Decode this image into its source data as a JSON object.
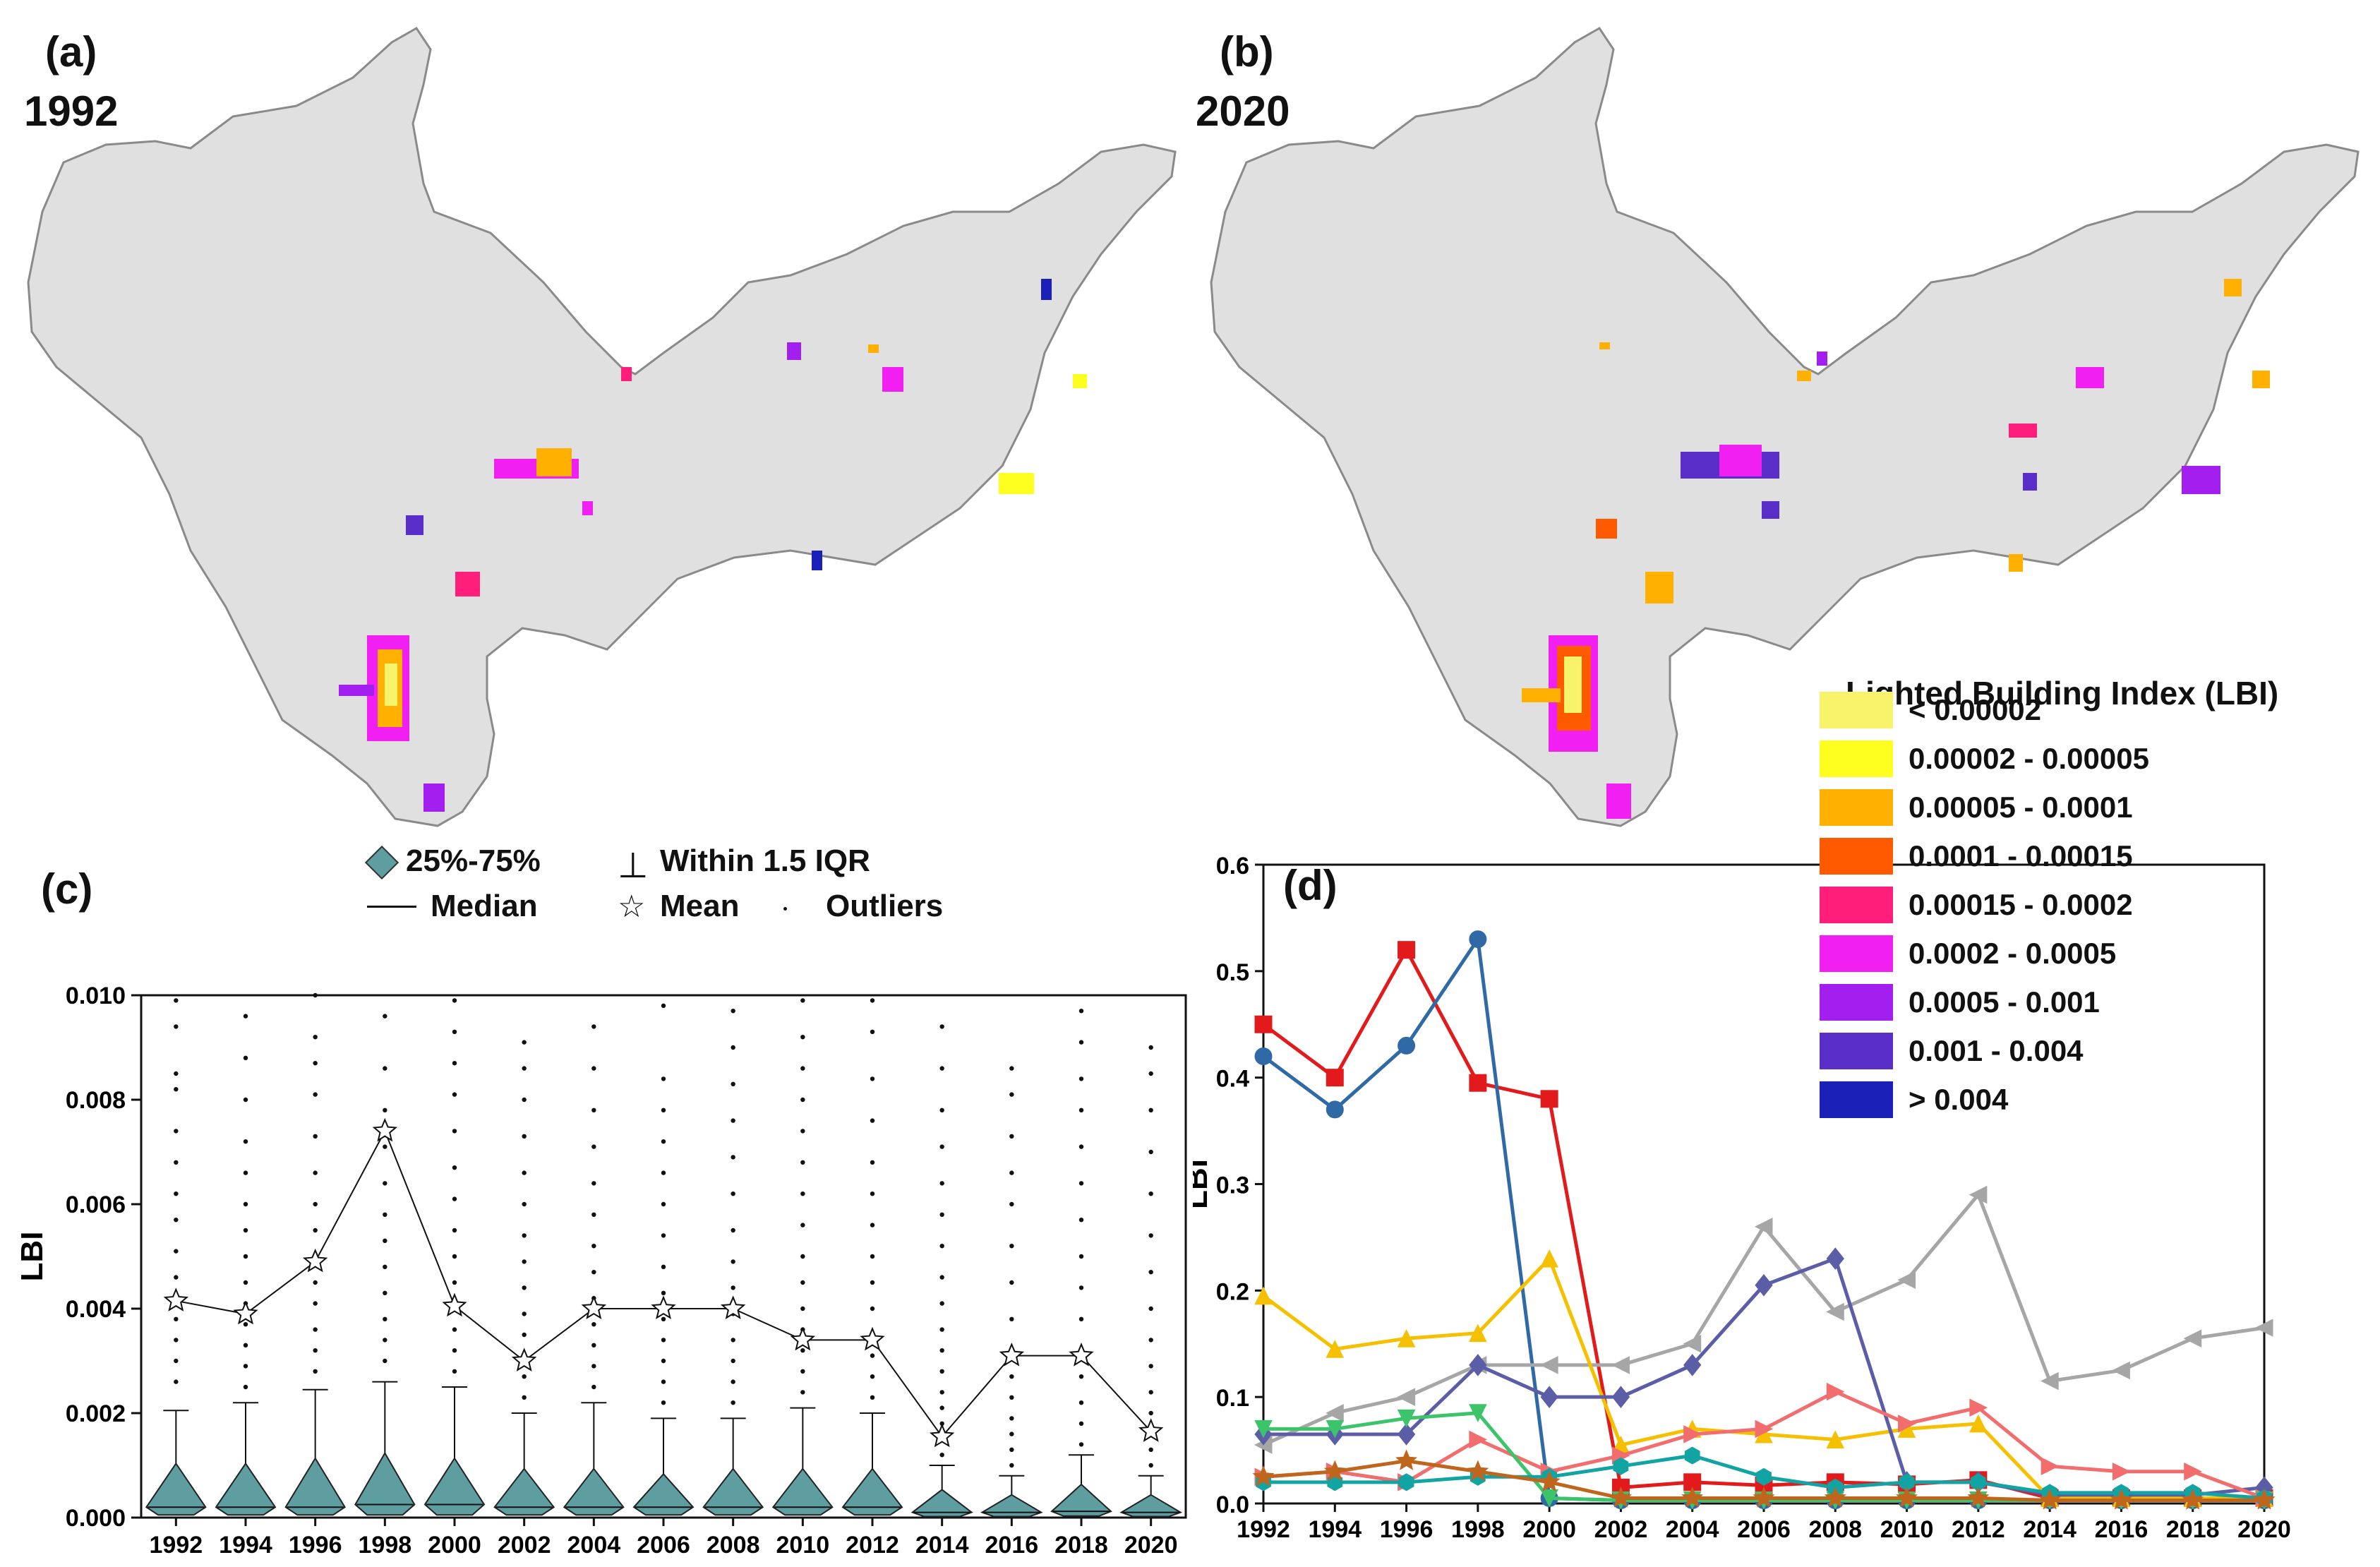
{
  "panels": {
    "a": {
      "label": "(a)",
      "year": "1992"
    },
    "b": {
      "label": "(b)",
      "year": "2020"
    },
    "c": {
      "label": "(c)"
    },
    "d": {
      "label": "(d)"
    }
  },
  "map_legend": {
    "title": "Lighted Building Index (LBI)",
    "classes": [
      {
        "label": "< 0.00002",
        "color": "#f7f36a"
      },
      {
        "label": "0.00002 - 0.00005",
        "color": "#ffff1f"
      },
      {
        "label": "0.00005 - 0.0001",
        "color": "#ffb000"
      },
      {
        "label": "0.0001 - 0.00015",
        "color": "#ff5a00"
      },
      {
        "label": "0.00015 - 0.0002",
        "color": "#ff1f7a"
      },
      {
        "label": "0.0002 - 0.0005",
        "color": "#f21ff2"
      },
      {
        "label": "0.0005 - 0.001",
        "color": "#a31ff0"
      },
      {
        "label": "0.001 - 0.004",
        "color": "#5a2ec8"
      },
      {
        "label": "> 0.004",
        "color": "#1b21b8"
      }
    ]
  },
  "box_legend": {
    "box": "25%-75%",
    "whisker": "Within 1.5 IQR",
    "median": "Median",
    "mean": "Mean",
    "outliers": "Outliers"
  },
  "chart_data": [
    {
      "type": "box",
      "panel": "c",
      "ylabel": "LBI",
      "ylim": [
        0,
        0.01
      ],
      "yticks": [
        "0.000",
        "0.002",
        "0.004",
        "0.006",
        "0.008",
        "0.010"
      ],
      "categories": [
        "1992",
        "1994",
        "1996",
        "1998",
        "2000",
        "2002",
        "2004",
        "2006",
        "2008",
        "2010",
        "2012",
        "2014",
        "2016",
        "2018",
        "2020"
      ],
      "q1": [
        5e-05,
        5e-05,
        5e-05,
        5e-05,
        5e-05,
        5e-05,
        5e-05,
        5e-05,
        5e-05,
        5e-05,
        5e-05,
        2e-05,
        2e-05,
        3e-05,
        2e-05
      ],
      "median": [
        0.0002,
        0.0002,
        0.0002,
        0.00025,
        0.00025,
        0.0002,
        0.0002,
        0.0002,
        0.0002,
        0.0002,
        0.0002,
        0.0001,
        0.0001,
        0.00012,
        0.0001
      ],
      "q3": [
        0.0009,
        0.0009,
        0.001,
        0.0011,
        0.001,
        0.0008,
        0.0008,
        0.0007,
        0.0008,
        0.0008,
        0.0008,
        0.0004,
        0.0003,
        0.0005,
        0.0003
      ],
      "whisker_high": [
        0.00205,
        0.0022,
        0.00245,
        0.0026,
        0.0025,
        0.002,
        0.0022,
        0.0019,
        0.0019,
        0.0021,
        0.002,
        0.001,
        0.0008,
        0.0012,
        0.0008
      ],
      "mean": [
        0.00415,
        0.0039,
        0.0049,
        0.0074,
        0.00405,
        0.003,
        0.004,
        0.004,
        0.004,
        0.0034,
        0.0034,
        0.00155,
        0.0031,
        0.0031,
        0.00165
      ],
      "outliers": [
        [
          0.0026,
          0.003,
          0.0034,
          0.0038,
          0.0042,
          0.0046,
          0.0051,
          0.0057,
          0.0062,
          0.0068,
          0.0074,
          0.0082,
          0.0085,
          0.0094,
          0.0099
        ],
        [
          0.0025,
          0.0029,
          0.0033,
          0.0037,
          0.0041,
          0.0045,
          0.005,
          0.0055,
          0.006,
          0.0066,
          0.0072,
          0.008,
          0.0088,
          0.0096
        ],
        [
          0.0028,
          0.0032,
          0.0036,
          0.0041,
          0.0045,
          0.005,
          0.0055,
          0.006,
          0.0066,
          0.0073,
          0.0081,
          0.0087,
          0.0092,
          0.01
        ],
        [
          0.003,
          0.0034,
          0.0038,
          0.0043,
          0.0048,
          0.0053,
          0.0058,
          0.0064,
          0.0071,
          0.0078,
          0.0086,
          0.0096
        ],
        [
          0.0028,
          0.0032,
          0.0036,
          0.004,
          0.0045,
          0.005,
          0.0055,
          0.0061,
          0.0067,
          0.0074,
          0.0081,
          0.0087,
          0.0093,
          0.0099
        ],
        [
          0.0023,
          0.0027,
          0.0031,
          0.0035,
          0.0039,
          0.0044,
          0.0049,
          0.0054,
          0.006,
          0.0066,
          0.0073,
          0.008,
          0.0086,
          0.0091
        ],
        [
          0.0025,
          0.0029,
          0.0033,
          0.0037,
          0.0042,
          0.0047,
          0.0052,
          0.0058,
          0.0064,
          0.0071,
          0.0078,
          0.0086,
          0.0094
        ],
        [
          0.0022,
          0.0026,
          0.003,
          0.0034,
          0.0038,
          0.0043,
          0.0048,
          0.0054,
          0.006,
          0.0066,
          0.0072,
          0.0078,
          0.0084,
          0.0098
        ],
        [
          0.0022,
          0.0026,
          0.003,
          0.0034,
          0.0039,
          0.0044,
          0.0049,
          0.0055,
          0.0062,
          0.0069,
          0.0076,
          0.0083,
          0.009,
          0.0097
        ],
        [
          0.0024,
          0.0028,
          0.0032,
          0.0036,
          0.004,
          0.0045,
          0.005,
          0.0056,
          0.0062,
          0.0068,
          0.0074,
          0.008,
          0.0086,
          0.0092,
          0.0099
        ],
        [
          0.0023,
          0.0027,
          0.0031,
          0.0035,
          0.004,
          0.0045,
          0.005,
          0.0056,
          0.0062,
          0.0068,
          0.0076,
          0.0084,
          0.0093,
          0.0099
        ],
        [
          0.0012,
          0.0015,
          0.0018,
          0.0021,
          0.0024,
          0.0028,
          0.0032,
          0.0036,
          0.0041,
          0.0046,
          0.0052,
          0.0058,
          0.0064,
          0.0071,
          0.0078,
          0.0086,
          0.0094
        ],
        [
          0.001,
          0.0013,
          0.0016,
          0.0019,
          0.0023,
          0.0027,
          0.0032,
          0.0038,
          0.0045,
          0.0052,
          0.006,
          0.0066,
          0.0073,
          0.0081,
          0.0086
        ],
        [
          0.0014,
          0.0018,
          0.0022,
          0.0027,
          0.0032,
          0.0038,
          0.0044,
          0.005,
          0.0057,
          0.0064,
          0.0071,
          0.0078,
          0.0084,
          0.0091,
          0.0097
        ],
        [
          0.001,
          0.0013,
          0.0016,
          0.002,
          0.0024,
          0.0029,
          0.0034,
          0.004,
          0.0047,
          0.0054,
          0.0062,
          0.007,
          0.0078,
          0.0085,
          0.009
        ]
      ]
    },
    {
      "type": "line",
      "panel": "d",
      "ylabel": "LBI",
      "ylim": [
        0,
        0.6
      ],
      "yticks": [
        "0.0",
        "0.1",
        "0.2",
        "0.3",
        "0.4",
        "0.5",
        "0.6"
      ],
      "x": [
        "1992",
        "1994",
        "1996",
        "1998",
        "2000",
        "2002",
        "2004",
        "2006",
        "2008",
        "2010",
        "2012",
        "2014",
        "2016",
        "2018",
        "2020"
      ],
      "series": [
        {
          "name": "red",
          "color": "#e31a1c",
          "marker": "square",
          "values": [
            0.45,
            0.4,
            0.52,
            0.395,
            0.38,
            0.015,
            0.02,
            0.017,
            0.02,
            0.018,
            0.022,
            0.005,
            0.005,
            0.005,
            0.005
          ]
        },
        {
          "name": "blue",
          "color": "#2f6aa6",
          "marker": "circle",
          "values": [
            0.42,
            0.37,
            0.43,
            0.53,
            0.005,
            0.003,
            0.003,
            0.003,
            0.003,
            0.003,
            0.003,
            0.003,
            0.003,
            0.003,
            0.003
          ]
        },
        {
          "name": "grey",
          "color": "#a6a6a6",
          "marker": "left-triangle",
          "values": [
            0.055,
            0.085,
            0.1,
            0.13,
            0.13,
            0.13,
            0.15,
            0.26,
            0.18,
            0.21,
            0.29,
            0.115,
            0.125,
            0.155,
            0.165
          ]
        },
        {
          "name": "yellow",
          "color": "#f5c000",
          "marker": "triangle",
          "values": [
            0.195,
            0.145,
            0.155,
            0.16,
            0.23,
            0.055,
            0.07,
            0.065,
            0.06,
            0.07,
            0.075,
            0.005,
            0.005,
            0.005,
            0.005
          ]
        },
        {
          "name": "purple",
          "color": "#5b5ea6",
          "marker": "diamond",
          "values": [
            0.065,
            0.065,
            0.065,
            0.13,
            0.1,
            0.1,
            0.13,
            0.205,
            0.23,
            0.02,
            0.02,
            0.008,
            0.008,
            0.008,
            0.015
          ]
        },
        {
          "name": "salmon",
          "color": "#f26d6d",
          "marker": "right-triangle",
          "values": [
            0.025,
            0.03,
            0.02,
            0.06,
            0.03,
            0.045,
            0.065,
            0.07,
            0.105,
            0.075,
            0.09,
            0.035,
            0.03,
            0.03,
            0.005
          ]
        },
        {
          "name": "green",
          "color": "#3cc46a",
          "marker": "down-triangle",
          "values": [
            0.07,
            0.07,
            0.08,
            0.085,
            0.005,
            0.003,
            0.003,
            0.003,
            0.003,
            0.003,
            0.003,
            0.003,
            0.003,
            0.003,
            0.003
          ]
        },
        {
          "name": "teal",
          "color": "#12a3a3",
          "marker": "hexagon",
          "values": [
            0.02,
            0.02,
            0.02,
            0.025,
            0.025,
            0.035,
            0.045,
            0.025,
            0.015,
            0.02,
            0.02,
            0.01,
            0.01,
            0.01,
            0.005
          ]
        },
        {
          "name": "orange",
          "color": "#c0661c",
          "marker": "star",
          "values": [
            0.025,
            0.03,
            0.04,
            0.03,
            0.02,
            0.005,
            0.005,
            0.005,
            0.005,
            0.005,
            0.005,
            0.003,
            0.003,
            0.003,
            0.003
          ]
        }
      ]
    }
  ]
}
